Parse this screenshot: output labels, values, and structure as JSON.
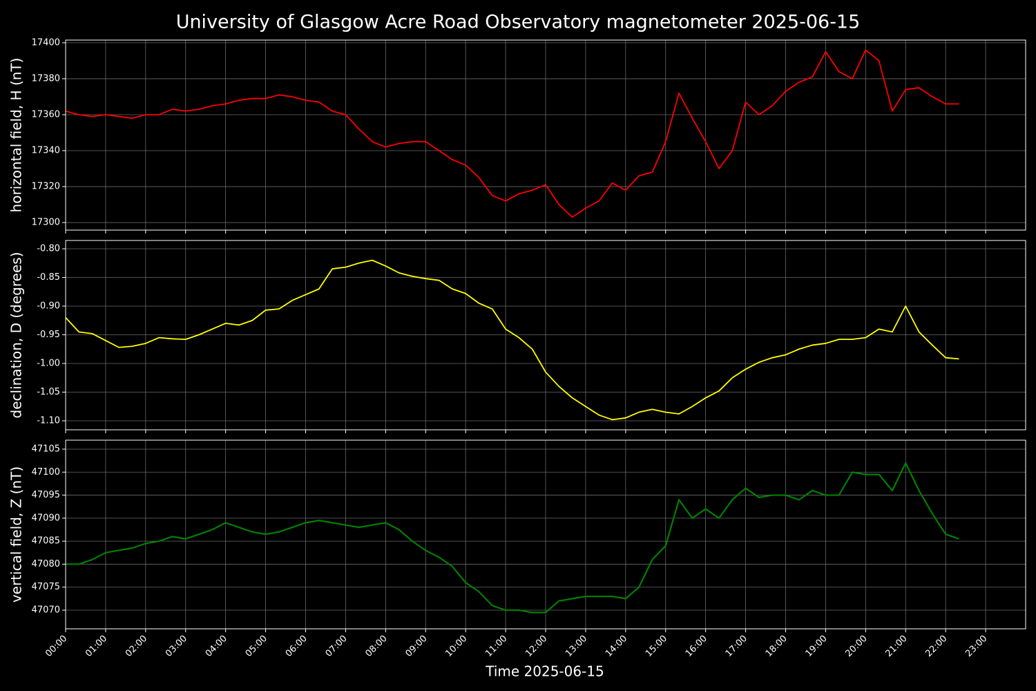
{
  "title": "University of Glasgow Acre Road Observatory magnetometer 2025-06-15",
  "chart_data": [
    {
      "type": "line",
      "ylabel": "horizontal field, H (nT)",
      "color": "#ff0000",
      "grid": true,
      "xlim": [
        "00:00",
        "24:00"
      ],
      "ylim": [
        17295.8,
        17401.5
      ],
      "yticks": [
        17300,
        17320,
        17340,
        17360,
        17380,
        17400
      ],
      "x": [
        "00:00",
        "00:20",
        "00:40",
        "01:00",
        "01:20",
        "01:40",
        "02:00",
        "02:20",
        "02:40",
        "03:00",
        "03:20",
        "03:40",
        "04:00",
        "04:20",
        "04:40",
        "05:00",
        "05:20",
        "05:40",
        "06:00",
        "06:20",
        "06:40",
        "07:00",
        "07:20",
        "07:40",
        "08:00",
        "08:20",
        "08:40",
        "09:00",
        "09:20",
        "09:40",
        "10:00",
        "10:20",
        "10:40",
        "11:00",
        "11:20",
        "11:40",
        "12:00",
        "12:20",
        "12:40",
        "13:00",
        "13:20",
        "13:40",
        "14:00",
        "14:20",
        "14:40",
        "15:00",
        "15:20",
        "15:40",
        "16:00",
        "16:20",
        "16:40",
        "17:00",
        "17:20",
        "17:40",
        "18:00",
        "18:20",
        "18:40",
        "19:00",
        "19:20",
        "19:40",
        "20:00",
        "20:20",
        "20:40",
        "21:00",
        "21:20",
        "21:40",
        "22:00",
        "22:20"
      ],
      "values": [
        17362,
        17360,
        17359,
        17360,
        17359,
        17358,
        17360,
        17360,
        17363,
        17362,
        17363,
        17365,
        17366,
        17368,
        17369,
        17369,
        17371,
        17370,
        17368,
        17367,
        17362,
        17360,
        17352,
        17345,
        17342,
        17344,
        17345,
        17345,
        17340,
        17335,
        17332,
        17325,
        17315,
        17312,
        17316,
        17318,
        17321,
        17310,
        17303,
        17308,
        17312,
        17322,
        17318,
        17326,
        17328,
        17345,
        17372,
        17358,
        17345,
        17330,
        17340,
        17367,
        17360,
        17365,
        17373,
        17378,
        17381,
        17395,
        17384,
        17380,
        17396,
        17390,
        17362,
        17374,
        17375,
        17370,
        17366,
        17366
      ]
    },
    {
      "type": "line",
      "ylabel": "declination, D (degrees)",
      "color": "#ffff00",
      "grid": true,
      "xlim": [
        "00:00",
        "24:00"
      ],
      "ylim": [
        -1.1157,
        -0.7855
      ],
      "yticks": [
        {
          "value": -1.1,
          "label": "-1.10"
        },
        {
          "value": -1.05,
          "label": "-1.05"
        },
        {
          "value": -1.0,
          "label": "-1.00"
        },
        {
          "value": -0.95,
          "label": "-0.95"
        },
        {
          "value": -0.9,
          "label": "-0.90"
        },
        {
          "value": -0.85,
          "label": "-0.85"
        },
        {
          "value": -0.8,
          "label": "-0.80"
        }
      ],
      "x": [
        "00:00",
        "00:20",
        "00:40",
        "01:00",
        "01:20",
        "01:40",
        "02:00",
        "02:20",
        "02:40",
        "03:00",
        "03:20",
        "03:40",
        "04:00",
        "04:20",
        "04:40",
        "05:00",
        "05:20",
        "05:40",
        "06:00",
        "06:20",
        "06:40",
        "07:00",
        "07:20",
        "07:40",
        "08:00",
        "08:20",
        "08:40",
        "09:00",
        "09:20",
        "09:40",
        "10:00",
        "10:20",
        "10:40",
        "11:00",
        "11:20",
        "11:40",
        "12:00",
        "12:20",
        "12:40",
        "13:00",
        "13:20",
        "13:40",
        "14:00",
        "14:20",
        "14:40",
        "15:00",
        "15:20",
        "15:40",
        "16:00",
        "16:20",
        "16:40",
        "17:00",
        "17:20",
        "17:40",
        "18:00",
        "18:20",
        "18:40",
        "19:00",
        "19:20",
        "19:40",
        "20:00",
        "20:20",
        "20:40",
        "21:00",
        "21:20",
        "21:40",
        "22:00",
        "22:20"
      ],
      "values": [
        -0.92,
        -0.945,
        -0.948,
        -0.96,
        -0.972,
        -0.97,
        -0.965,
        -0.955,
        -0.957,
        -0.958,
        -0.95,
        -0.94,
        -0.93,
        -0.933,
        -0.925,
        -0.907,
        -0.905,
        -0.89,
        -0.88,
        -0.87,
        -0.835,
        -0.832,
        -0.825,
        -0.82,
        -0.83,
        -0.842,
        -0.848,
        -0.852,
        -0.855,
        -0.87,
        -0.878,
        -0.895,
        -0.905,
        -0.94,
        -0.955,
        -0.975,
        -1.015,
        -1.04,
        -1.06,
        -1.075,
        -1.09,
        -1.098,
        -1.095,
        -1.085,
        -1.08,
        -1.085,
        -1.088,
        -1.075,
        -1.06,
        -1.048,
        -1.025,
        -1.01,
        -0.998,
        -0.99,
        -0.985,
        -0.975,
        -0.968,
        -0.965,
        -0.958,
        -0.958,
        -0.955,
        -0.94,
        -0.945,
        -0.9,
        -0.945,
        -0.968,
        -0.99,
        -0.992
      ]
    },
    {
      "type": "line",
      "ylabel": "vertical field, Z (nT)",
      "xlabel": "Time 2025-06-15",
      "color": "#008000",
      "grid": true,
      "xlim": [
        "00:00",
        "24:00"
      ],
      "ylim": [
        47065.95,
        47106.95
      ],
      "yticks": [
        47070,
        47075,
        47080,
        47085,
        47090,
        47095,
        47100,
        47105
      ],
      "xticks": [
        "00:00",
        "01:00",
        "02:00",
        "03:00",
        "04:00",
        "05:00",
        "06:00",
        "07:00",
        "08:00",
        "09:00",
        "10:00",
        "11:00",
        "12:00",
        "13:00",
        "14:00",
        "15:00",
        "16:00",
        "17:00",
        "18:00",
        "19:00",
        "20:00",
        "21:00",
        "22:00",
        "23:00"
      ],
      "x": [
        "00:00",
        "00:20",
        "00:40",
        "01:00",
        "01:20",
        "01:40",
        "02:00",
        "02:20",
        "02:40",
        "03:00",
        "03:20",
        "03:40",
        "04:00",
        "04:20",
        "04:40",
        "05:00",
        "05:20",
        "05:40",
        "06:00",
        "06:20",
        "06:40",
        "07:00",
        "07:20",
        "07:40",
        "08:00",
        "08:20",
        "08:40",
        "09:00",
        "09:20",
        "09:40",
        "10:00",
        "10:20",
        "10:40",
        "11:00",
        "11:20",
        "11:40",
        "12:00",
        "12:20",
        "12:40",
        "13:00",
        "13:20",
        "13:40",
        "14:00",
        "14:20",
        "14:40",
        "15:00",
        "15:20",
        "15:40",
        "16:00",
        "16:20",
        "16:40",
        "17:00",
        "17:20",
        "17:40",
        "18:00",
        "18:20",
        "18:40",
        "19:00",
        "19:20",
        "19:40",
        "20:00",
        "20:20",
        "20:40",
        "21:00",
        "21:20",
        "21:40",
        "22:00",
        "22:20"
      ],
      "values": [
        47080,
        47080,
        47081,
        47082.5,
        47083,
        47083.5,
        47084.5,
        47085,
        47086,
        47085.5,
        47086.5,
        47087.5,
        47089,
        47088,
        47087,
        47086.5,
        47087,
        47088,
        47089,
        47089.5,
        47089,
        47088.5,
        47088,
        47088.5,
        47089,
        47087.5,
        47085,
        47083,
        47081.5,
        47079.5,
        47076,
        47074,
        47071,
        47070,
        47070,
        47069.5,
        47069.5,
        47072,
        47072.5,
        47073,
        47073,
        47073,
        47072.5,
        47075,
        47081,
        47084,
        47094,
        47090,
        47092,
        47090,
        47094,
        47096.5,
        47094.5,
        47095,
        47095,
        47094,
        47096,
        47095,
        47095,
        47100,
        47099.5,
        47099.5,
        47096,
        47102,
        47096,
        47091,
        47086.5,
        47085.5
      ]
    }
  ]
}
